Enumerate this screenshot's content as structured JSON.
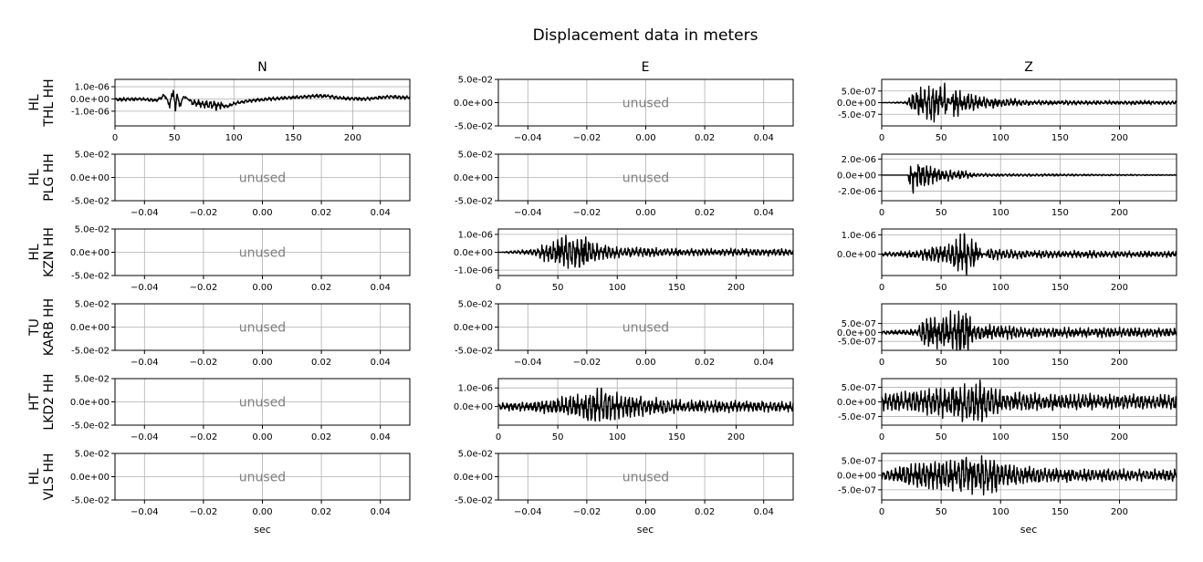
{
  "chart_data": {
    "type": "line",
    "title": "Displacement data in meters",
    "columns": [
      "N",
      "E",
      "Z"
    ],
    "rows": [
      {
        "network": "HL",
        "station": "THL HH"
      },
      {
        "network": "HL",
        "station": "PLG HH"
      },
      {
        "network": "HL",
        "station": "KZN HH"
      },
      {
        "network": "TU",
        "station": "KARB HH"
      },
      {
        "network": "HT",
        "station": "LKD2 HH"
      },
      {
        "network": "HL",
        "station": "VLS HH"
      }
    ],
    "xlabel": "sec",
    "unused_label": "unused",
    "unused_axes": {
      "xlim": [
        -0.05,
        0.05
      ],
      "ylim": [
        -0.05,
        0.05
      ],
      "xticks": [
        -0.04,
        -0.02,
        0.0,
        0.02,
        0.04
      ],
      "xticklabels": [
        "−0.04",
        "−0.02",
        "0.00",
        "0.02",
        "0.04"
      ],
      "yticks": [
        0.05,
        0.0,
        -0.05
      ],
      "yticklabels": [
        "5.0e-02",
        "0.0e+00",
        "-5.0e-02"
      ]
    },
    "panels": [
      {
        "row": 0,
        "col": 0,
        "used": true,
        "xlim": [
          0,
          248
        ],
        "ylim": [
          -2.2e-06,
          1.6e-06
        ],
        "yticks": [
          1e-06,
          0.0,
          -1e-06
        ],
        "yticklabels": [
          "1.0e-06",
          "0.0e+00",
          "-1.0e-06"
        ],
        "xticks": [
          0,
          50,
          100,
          150,
          200
        ],
        "xticklabels": [
          "0",
          "50",
          "100",
          "150",
          "200"
        ],
        "trace_sec": [
          0,
          20,
          35,
          42,
          46,
          49,
          51,
          52,
          54,
          58,
          65,
          80,
          95,
          100,
          110,
          130,
          150,
          170,
          178,
          190,
          210,
          230,
          248
        ],
        "trace_m": [
          -1e-07,
          0,
          -2e-07,
          5e-07,
          -8e-07,
          1.4e-06,
          -2.1e-06,
          1.2e-06,
          -1e-06,
          4e-07,
          -5e-07,
          -8e-07,
          -1e-06,
          -6e-07,
          -3e-07,
          0,
          2e-07,
          4e-07,
          4e-07,
          1e-07,
          0,
          3e-07,
          2e-07
        ]
      },
      {
        "row": 0,
        "col": 1,
        "used": false
      },
      {
        "row": 0,
        "col": 2,
        "used": true,
        "xlim": [
          0,
          248
        ],
        "ylim": [
          -1e-06,
          1e-06
        ],
        "yticks": [
          5e-07,
          0.0,
          -5e-07
        ],
        "yticklabels": [
          "5.0e-07",
          "0.0e+00",
          "-5.0e-07"
        ],
        "xticks": [
          0,
          50,
          100,
          150,
          200
        ],
        "xticklabels": [
          "0",
          "50",
          "100",
          "150",
          "200"
        ],
        "trace_sec": [
          0,
          20,
          25,
          40,
          50,
          53,
          60,
          80,
          100,
          130,
          248
        ],
        "trace_m": [
          0,
          5e-08,
          4e-07,
          8e-07,
          9.5e-07,
          -9.5e-07,
          6e-07,
          3e-07,
          2e-07,
          1e-07,
          8e-08
        ]
      },
      {
        "row": 1,
        "col": 0,
        "used": false
      },
      {
        "row": 1,
        "col": 1,
        "used": false
      },
      {
        "row": 1,
        "col": 2,
        "used": true,
        "xlim": [
          0,
          248
        ],
        "ylim": [
          -3.2e-06,
          2.6e-06
        ],
        "yticks": [
          2e-06,
          0.0,
          -2e-06
        ],
        "yticklabels": [
          "2.0e-06",
          "0.0e+00",
          "-2.0e-06"
        ],
        "xticks": [
          0,
          50,
          100,
          150,
          200
        ],
        "xticklabels": [
          "0",
          "50",
          "100",
          "150",
          "200"
        ],
        "trace_sec": [
          0,
          22,
          24,
          26,
          30,
          35,
          50,
          70,
          80,
          248
        ],
        "trace_m": [
          0,
          0,
          2.5e-06,
          -3e-06,
          2e-06,
          1.5e-06,
          8e-07,
          5e-07,
          2e-07,
          5e-08
        ]
      },
      {
        "row": 2,
        "col": 0,
        "used": false
      },
      {
        "row": 2,
        "col": 1,
        "used": true,
        "xlim": [
          0,
          248
        ],
        "ylim": [
          -1.3e-06,
          1.3e-06
        ],
        "yticks": [
          1e-06,
          0.0,
          -1e-06
        ],
        "yticklabels": [
          "1.0e-06",
          "0.0e+00",
          "-1.0e-06"
        ],
        "xticks": [
          0,
          50,
          100,
          150,
          200
        ],
        "xticklabels": [
          "0",
          "50",
          "100",
          "150",
          "200"
        ],
        "trace_sec": [
          0,
          30,
          40,
          55,
          60,
          72,
          80,
          100,
          150,
          248
        ],
        "trace_m": [
          0,
          2e-07,
          5e-07,
          9e-07,
          1e-06,
          1.2e-06,
          5e-07,
          3e-07,
          2e-07,
          2e-07
        ]
      },
      {
        "row": 2,
        "col": 2,
        "used": true,
        "xlim": [
          0,
          248
        ],
        "ylim": [
          -1.1e-06,
          1.3e-06
        ],
        "yticks": [
          1e-06,
          0.0
        ],
        "yticklabels": [
          "1.0e-06",
          "0.0e+00"
        ],
        "xticks": [
          0,
          50,
          100,
          150,
          200
        ],
        "xticklabels": [
          "0",
          "50",
          "100",
          "150",
          "200"
        ],
        "trace_sec": [
          0,
          30,
          40,
          55,
          60,
          72,
          75,
          90,
          120,
          248
        ],
        "trace_m": [
          1e-07,
          2e-07,
          4e-07,
          5e-07,
          7e-07,
          1.2e-06,
          -1e-06,
          3e-07,
          2e-07,
          1.5e-07
        ]
      },
      {
        "row": 3,
        "col": 0,
        "used": false
      },
      {
        "row": 3,
        "col": 1,
        "used": false
      },
      {
        "row": 3,
        "col": 2,
        "used": true,
        "xlim": [
          0,
          248
        ],
        "ylim": [
          -1e-06,
          1.6e-06
        ],
        "yticks": [
          5e-07,
          0.0,
          -5e-07
        ],
        "yticklabels": [
          "5.0e-07",
          "0.0e+00",
          "-5.0e-07"
        ],
        "xticks": [
          0,
          50,
          100,
          150,
          200
        ],
        "xticklabels": [
          "0",
          "50",
          "100",
          "150",
          "200"
        ],
        "trace_sec": [
          0,
          30,
          35,
          50,
          72,
          75,
          90,
          120,
          248
        ],
        "trace_m": [
          1e-07,
          2e-07,
          8e-07,
          9e-07,
          1.5e-06,
          6e-07,
          4e-07,
          3e-07,
          2.5e-07
        ]
      },
      {
        "row": 4,
        "col": 0,
        "used": false
      },
      {
        "row": 4,
        "col": 1,
        "used": true,
        "xlim": [
          0,
          248
        ],
        "ylim": [
          -1e-06,
          1.5e-06
        ],
        "yticks": [
          1e-06,
          0.0
        ],
        "yticklabels": [
          "1.0e-06",
          "0.0e+00"
        ],
        "xticks": [
          0,
          50,
          100,
          150,
          200
        ],
        "xticklabels": [
          "0",
          "50",
          "100",
          "150",
          "200"
        ],
        "trace_sec": [
          0,
          35,
          60,
          93,
          100,
          140,
          200,
          248
        ],
        "trace_m": [
          2e-07,
          3e-07,
          6e-07,
          1.1e-06,
          7e-07,
          4e-07,
          3e-07,
          3e-07
        ]
      },
      {
        "row": 4,
        "col": 2,
        "used": true,
        "xlim": [
          0,
          248
        ],
        "ylim": [
          -8e-07,
          8e-07
        ],
        "yticks": [
          5e-07,
          0.0,
          -5e-07
        ],
        "yticklabels": [
          "5.0e-07",
          "0.0e+00",
          "-5.0e-07"
        ],
        "xticks": [
          0,
          50,
          100,
          150,
          200
        ],
        "xticklabels": [
          "0",
          "50",
          "100",
          "150",
          "200"
        ],
        "trace_sec": [
          0,
          35,
          60,
          85,
          90,
          120,
          200,
          248
        ],
        "trace_m": [
          3e-07,
          4e-07,
          6e-07,
          7.5e-07,
          5e-07,
          3e-07,
          2.5e-07,
          2.5e-07
        ]
      },
      {
        "row": 5,
        "col": 0,
        "used": false
      },
      {
        "row": 5,
        "col": 1,
        "used": false
      },
      {
        "row": 5,
        "col": 2,
        "used": true,
        "xlim": [
          0,
          248
        ],
        "ylim": [
          -8.5e-07,
          7.5e-07
        ],
        "yticks": [
          5e-07,
          0.0,
          -5e-07
        ],
        "yticklabels": [
          "5.0e-07",
          "0.0e+00",
          "-5.0e-07"
        ],
        "xticks": [
          0,
          50,
          100,
          150,
          200
        ],
        "xticklabels": [
          "0",
          "50",
          "100",
          "150",
          "200"
        ],
        "trace_sec": [
          0,
          35,
          60,
          85,
          100,
          120,
          200,
          248
        ],
        "trace_m": [
          1.5e-07,
          5e-07,
          6e-07,
          8e-07,
          5e-07,
          3e-07,
          2e-07,
          2e-07
        ]
      }
    ]
  }
}
